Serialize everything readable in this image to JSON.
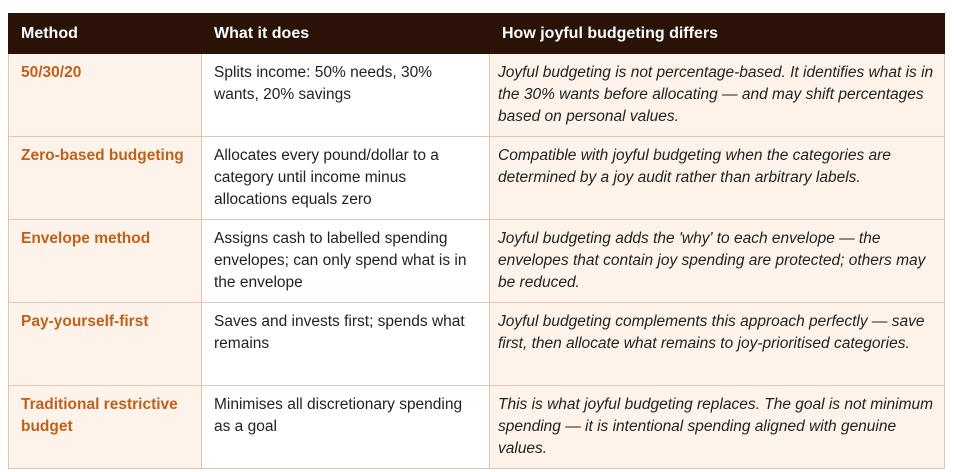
{
  "table": {
    "headers": [
      "Method",
      "What it does",
      "How joyful budgeting differs"
    ],
    "rows": [
      {
        "method": "50/30/20",
        "what": "Splits income: 50% needs, 30% wants, 20% savings",
        "diff": "Joyful budgeting is not percentage-based. It identifies what is in the 30% wants before allocating — and may shift percentages based on personal values."
      },
      {
        "method": "Zero-based budgeting",
        "what": "Allocates every pound/dollar to a category until income minus allocations equals zero",
        "diff": "Compatible with joyful budgeting when the categories are determined by a joy audit rather than arbitrary labels."
      },
      {
        "method": "Envelope method",
        "what": "Assigns cash to labelled spending envelopes; can only spend what is in the envelope",
        "diff": "Joyful budgeting adds the 'why' to each envelope — the envelopes that contain joy spending are protected; others may be reduced."
      },
      {
        "method": "Pay-yourself-first",
        "what": "Saves and invests first; spends what remains",
        "diff": "Joyful budgeting complements this approach perfectly — save first, then allocate what remains to joy-prioritised categories."
      },
      {
        "method": "Traditional restrictive budget",
        "what": "Minimises all discretionary spending as a goal",
        "diff": "This is what joyful budgeting replaces. The goal is not minimum spending — it is intentional spending aligned with genuine values."
      }
    ]
  },
  "colors": {
    "header_bg": "#2b1208",
    "header_text": "#ffffff",
    "method_text": "#c0601a",
    "tint_bg": "#fdf3ea",
    "border": "#e2c4ae"
  }
}
